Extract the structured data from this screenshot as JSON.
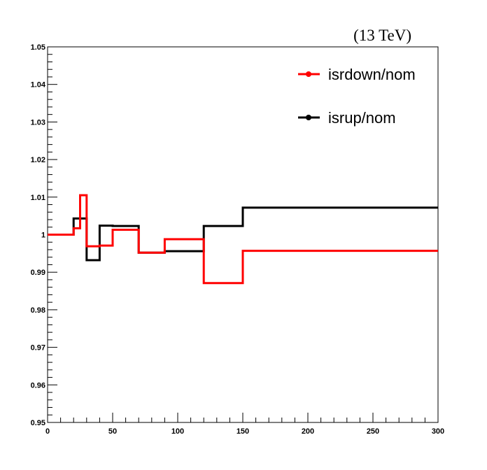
{
  "chart_data": {
    "type": "line",
    "title": "",
    "energy_label": "(13 TeV)",
    "xlabel": "",
    "ylabel": "",
    "xlim": [
      0,
      300
    ],
    "ylim": [
      0.95,
      1.05
    ],
    "x_ticks": [
      0,
      50,
      100,
      150,
      200,
      250,
      300
    ],
    "y_ticks": [
      0.95,
      0.96,
      0.97,
      0.98,
      0.99,
      1,
      1.01,
      1.02,
      1.03,
      1.04,
      1.05
    ],
    "x_tick_labels": [
      "0",
      "50",
      "100",
      "150",
      "200",
      "250",
      "300"
    ],
    "y_tick_labels": [
      "0.95",
      "0.96",
      "0.97",
      "0.98",
      "0.99",
      "1",
      "1.01",
      "1.02",
      "1.03",
      "1.04",
      "1.05"
    ],
    "grid": false,
    "legend_position": "top-right",
    "bin_edges": [
      0,
      20,
      25,
      30,
      40,
      50,
      70,
      90,
      120,
      150,
      300
    ],
    "series": [
      {
        "name": "isrdown/nom",
        "color": "#ff0000",
        "values": [
          1.0,
          1.0017,
          1.0105,
          0.9969,
          0.9971,
          1.0013,
          0.9952,
          0.9988,
          0.9871,
          0.9957
        ]
      },
      {
        "name": "isrup/nom",
        "color": "#000000",
        "values": [
          1.0,
          1.0043,
          1.0043,
          0.9932,
          1.0024,
          1.0023,
          0.9952,
          0.9956,
          1.0023,
          1.0072
        ]
      }
    ]
  }
}
